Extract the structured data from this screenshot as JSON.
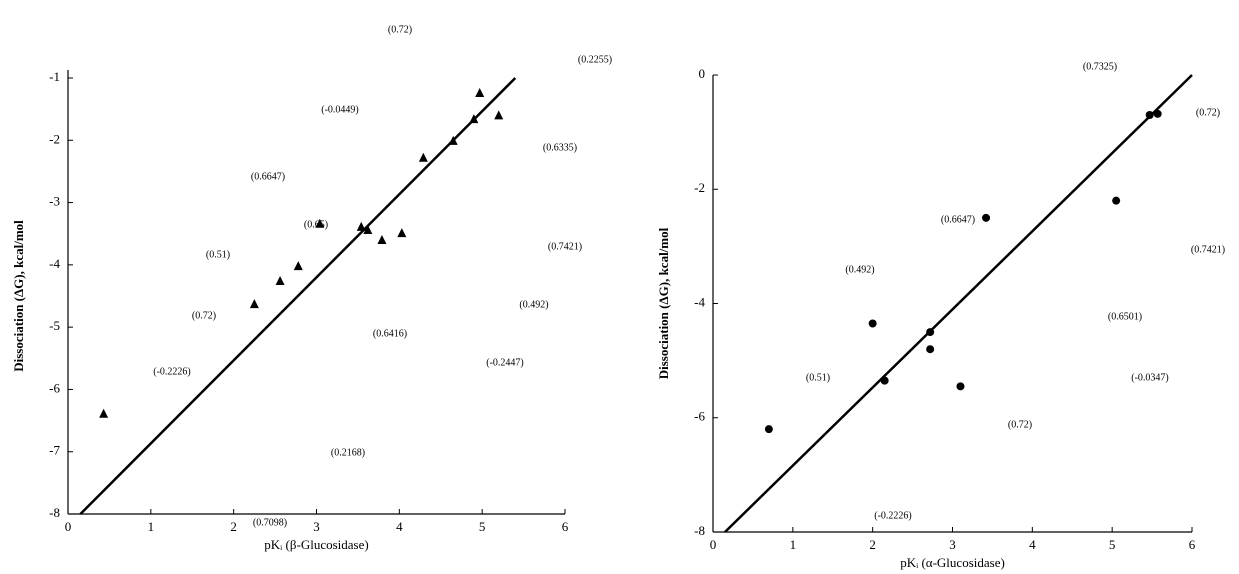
{
  "chart_data": [
    {
      "type": "scatter",
      "marker": "triangle",
      "color": "#000000",
      "xlabel": "pKᵢ (β-Glucosidase)",
      "ylabel": "Dissociation (ΔG), kcal/mol",
      "x": [
        0.43,
        2.25,
        2.56,
        2.78,
        3.04,
        3.54,
        3.62,
        3.79,
        4.03,
        4.29,
        4.65,
        4.9,
        4.97,
        5.2
      ],
      "values": [
        -6.39,
        -4.63,
        -4.26,
        -4.02,
        -3.34,
        -3.39,
        -3.44,
        -3.6,
        -3.49,
        -2.28,
        -2.01,
        -1.66,
        -1.24,
        -1.6
      ],
      "fit_line": {
        "x": [
          0.15,
          5.4
        ],
        "values": [
          -8,
          -1
        ]
      },
      "xlim": [
        0,
        6
      ],
      "ylim": [
        -8,
        -1
      ],
      "xticks": [
        0,
        1,
        2,
        3,
        4,
        5,
        6
      ],
      "yticks": [
        -8,
        -7,
        -6,
        -5,
        -4,
        -3,
        -2,
        -1
      ],
      "annotations": [
        "(0.72)",
        "(0.2255)",
        "(-0.0449)",
        "(0.6335)",
        "(0.6647)",
        "(0.7421)",
        "(0.65)",
        "(0.51)",
        "(0.492)",
        "(0.72)",
        "(0.6416)",
        "(-0.2447)",
        "(-0.2226)",
        "(0.2168)",
        "(0.7098)"
      ]
    },
    {
      "type": "scatter",
      "marker": "circle",
      "color": "#000000",
      "xlabel": "pKᵢ (α-Glucosidase)",
      "ylabel": "Dissociation (ΔG), kcal/mol",
      "x": [
        0.7,
        2.0,
        2.15,
        2.72,
        2.72,
        3.1,
        3.42,
        5.05,
        5.47,
        5.57
      ],
      "values": [
        -6.2,
        -4.35,
        -5.35,
        -4.5,
        -4.8,
        -5.45,
        -2.5,
        -2.2,
        -0.7,
        -0.68
      ],
      "fit_line": {
        "x": [
          0.15,
          6
        ],
        "values": [
          -8,
          0
        ]
      },
      "xlim": [
        0,
        6
      ],
      "ylim": [
        -8,
        0
      ],
      "xticks": [
        0,
        1,
        2,
        3,
        4,
        5,
        6
      ],
      "yticks": [
        -8,
        -6,
        -4,
        -2,
        0
      ],
      "annotations": [
        "(0.7325)",
        "(0.72)",
        "(0.6647)",
        "(0.7421)",
        "(0.492)",
        "(0.6501)",
        "(0.51)",
        "(-0.0347)",
        "(0.72)",
        "(-0.2226)"
      ]
    }
  ]
}
